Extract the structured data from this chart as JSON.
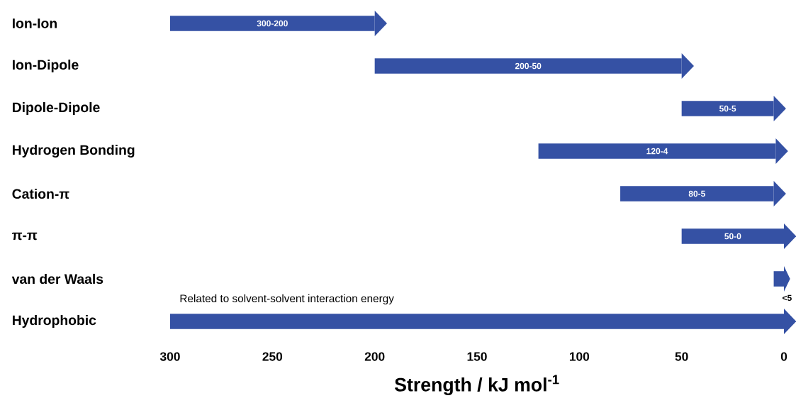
{
  "chart_data": {
    "type": "bar",
    "orientation": "horizontal",
    "xlabel": "Strength / kJ mol$^{-1}$",
    "categories": [
      "Ion-Ion",
      "Ion-Dipole",
      "Dipole-Dipole",
      "Hydrogen Bonding",
      "Cation-π",
      "π-π",
      "van der Waals",
      "Hydrophobic"
    ],
    "base": [
      300,
      200,
      50,
      120,
      80,
      50,
      5,
      300
    ],
    "values": [
      -100,
      -150,
      -45,
      -116,
      -75,
      -50,
      -5,
      -300
    ],
    "value_labels": [
      "300-200",
      "200-50",
      "50-5",
      "120-4",
      "80-5",
      "50-0",
      "<5",
      null
    ],
    "color": "#3551a4",
    "xlim": [
      300,
      0
    ],
    "xticks": [
      300,
      250,
      200,
      150,
      100,
      50,
      0
    ],
    "annotations": [
      "Related to solvent-solvent interaction energy"
    ]
  }
}
